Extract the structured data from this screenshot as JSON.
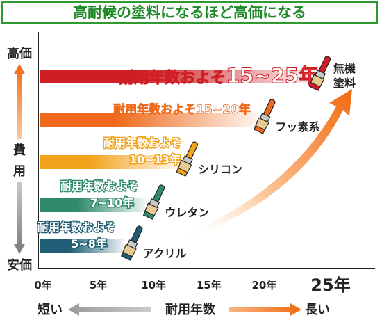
{
  "chart_data": {
    "type": "bar",
    "title": "高耐候の塗料になるほど高価になる",
    "y_axis": {
      "top_label": "高価",
      "middle_label": "費用",
      "bottom_label": "安価"
    },
    "x_axis": {
      "ticks": [
        "0年",
        "5年",
        "10年",
        "15年",
        "20年",
        "25年"
      ],
      "tick_values": [
        0,
        5,
        10,
        15,
        20,
        25
      ],
      "xlabel": "耐用年数",
      "left_label": "短い",
      "right_label": "長い",
      "range": [
        0,
        25
      ]
    },
    "series": [
      {
        "name": "アクリル",
        "range_label": "耐用年数およそ",
        "range_value": "5~8年",
        "min": 5,
        "max": 8,
        "color": "#1f5e74"
      },
      {
        "name": "ウレタン",
        "range_label": "耐用年数およそ",
        "range_value": "7~10年",
        "min": 7,
        "max": 10,
        "color": "#2e8a6a"
      },
      {
        "name": "シリコン",
        "range_label": "耐用年数およそ",
        "range_value": "10~13年",
        "min": 10,
        "max": 13,
        "color": "#f3a21b"
      },
      {
        "name": "フッ素系",
        "range_label": "耐用年数およそ",
        "range_value": "15~20年",
        "min": 15,
        "max": 20,
        "color": "#ef6a1c"
      },
      {
        "name": "無機塗料",
        "range_label": "耐用年数およそ",
        "range_value": "15~25年",
        "min": 15,
        "max": 25,
        "color": "#cf1f25"
      }
    ]
  }
}
